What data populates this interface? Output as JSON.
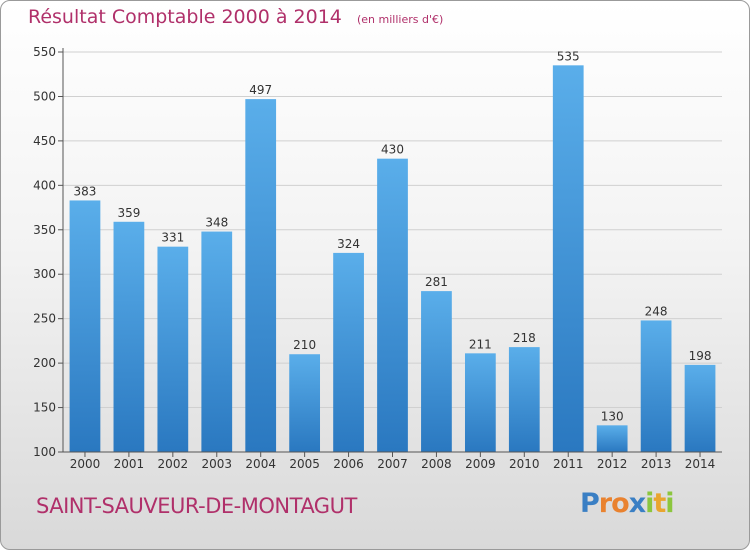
{
  "chart_data": {
    "type": "bar",
    "title": "Résultat Comptable 2000 à 2014",
    "subtitle": "(en milliers d'€)",
    "categories": [
      "2000",
      "2001",
      "2002",
      "2003",
      "2004",
      "2005",
      "2006",
      "2007",
      "2008",
      "2009",
      "2010",
      "2011",
      "2012",
      "2013",
      "2014"
    ],
    "values": [
      383,
      359,
      331,
      348,
      497,
      210,
      324,
      430,
      281,
      211,
      218,
      535,
      130,
      248,
      198
    ],
    "ylim": [
      100,
      550
    ],
    "yticks": [
      100,
      150,
      200,
      250,
      300,
      350,
      400,
      450,
      500,
      550
    ],
    "grid": true,
    "bar_color": "#3f97dd",
    "title_color": "#b0306a"
  },
  "location": "SAINT-SAUVEUR-DE-MONTAGUT",
  "logo": {
    "letters": [
      {
        "ch": "P",
        "color": "#3a7fc4"
      },
      {
        "ch": "r",
        "color": "#e9822f"
      },
      {
        "ch": "o",
        "color": "#e9822f"
      },
      {
        "ch": "x",
        "color": "#3a7fc4"
      },
      {
        "ch": "i",
        "color": "#8cc63e"
      },
      {
        "ch": "t",
        "color": "#e9a52f"
      },
      {
        "ch": "i",
        "color": "#8cc63e"
      }
    ]
  }
}
